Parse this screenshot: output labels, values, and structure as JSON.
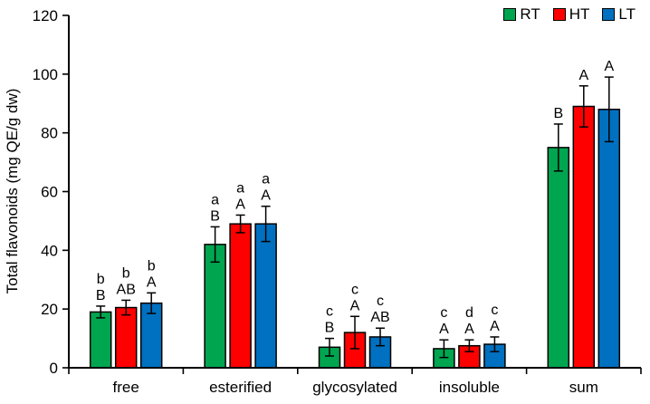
{
  "figure": {
    "background": "#ffffff"
  },
  "chart_data": {
    "type": "bar",
    "title": "",
    "ylabel": "Total flavonoids (mg QE/g dw)",
    "xlabel": "",
    "ylim": [
      0,
      120
    ],
    "yticks": [
      0,
      20,
      40,
      60,
      80,
      100,
      120
    ],
    "grid": false,
    "legend_position": "top-right",
    "error_bars": true,
    "categories": [
      "free",
      "esterified",
      "glycosylated",
      "insoluble",
      "sum"
    ],
    "series": [
      {
        "name": "RT",
        "color": "#00A550",
        "values": [
          19,
          42,
          7,
          6.5,
          75
        ],
        "errors": [
          2,
          6,
          3,
          3,
          8
        ],
        "letters_lower": [
          "b",
          "a",
          "c",
          "c",
          ""
        ],
        "letters_upper": [
          "B",
          "B",
          "B",
          "A",
          "B"
        ]
      },
      {
        "name": "HT",
        "color": "#FE0000",
        "values": [
          20.5,
          49,
          12,
          7.5,
          89
        ],
        "errors": [
          2.5,
          3,
          5.5,
          2,
          7
        ],
        "letters_lower": [
          "b",
          "a",
          "c",
          "d",
          ""
        ],
        "letters_upper": [
          "AB",
          "A",
          "A",
          "A",
          "A"
        ]
      },
      {
        "name": "LT",
        "color": "#0070C0",
        "values": [
          22,
          49,
          10.5,
          8,
          88
        ],
        "errors": [
          3.5,
          6,
          3,
          2.5,
          11
        ],
        "letters_lower": [
          "b",
          "a",
          "c",
          "c",
          ""
        ],
        "letters_upper": [
          "A",
          "A",
          "AB",
          "A",
          "A"
        ]
      }
    ],
    "axis_color": "#000000",
    "text_color": "#000000",
    "bar_border_color": "#000000",
    "error_bar_color": "#000000"
  }
}
